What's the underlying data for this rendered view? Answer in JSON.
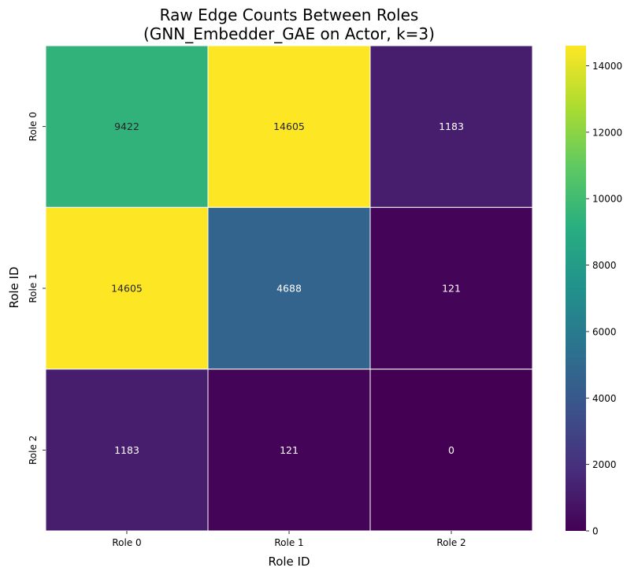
{
  "chart_data": {
    "type": "heatmap",
    "title_lines": [
      "Raw Edge Counts Between Roles",
      "(GNN_Embedder_GAE on Actor, k=3)"
    ],
    "xlabel": "Role ID",
    "ylabel": "Role ID",
    "x_categories": [
      "Role 0",
      "Role 1",
      "Role 2"
    ],
    "y_categories": [
      "Role 0",
      "Role 1",
      "Role 2"
    ],
    "values": [
      [
        9422,
        14605,
        1183
      ],
      [
        14605,
        4688,
        121
      ],
      [
        1183,
        121,
        0
      ]
    ],
    "colormap": "viridis",
    "vmin": 0,
    "vmax": 14605,
    "colorbar_ticks": [
      0,
      2000,
      4000,
      6000,
      8000,
      10000,
      12000,
      14000
    ]
  }
}
